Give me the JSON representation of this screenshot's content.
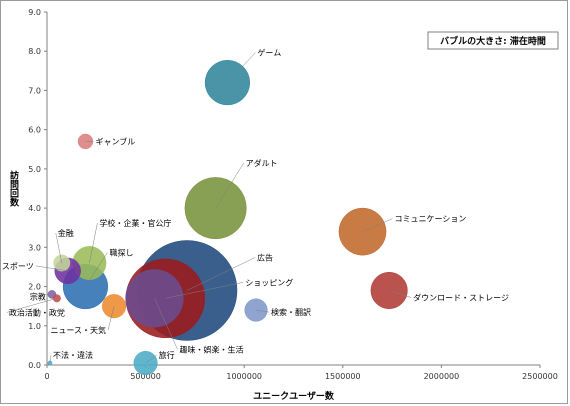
{
  "chart_data": {
    "type": "bubble",
    "note": "バブルの大きさ: 滞在時間",
    "xlabel": "ユニークユーザー数",
    "ylabel": "訪問回数",
    "xlim": [
      0,
      2500000
    ],
    "ylim": [
      0,
      9
    ],
    "x_ticks": [
      "0",
      "500000",
      "1000000",
      "1500000",
      "2000000",
      "2500000"
    ],
    "y_ticks": [
      "0.0",
      "1.0",
      "2.0",
      "3.0",
      "4.0",
      "5.0",
      "6.0",
      "7.0",
      "8.0",
      "9.0"
    ],
    "points": [
      {
        "label": "ゲーム",
        "x": 915000,
        "y": 7.2,
        "size": 9000,
        "color": "#31859c"
      },
      {
        "label": "ギャンブル",
        "x": 195000,
        "y": 5.7,
        "size": 1000,
        "color": "#d9807d"
      },
      {
        "label": "アダルト",
        "x": 855000,
        "y": 4.0,
        "size": 17000,
        "color": "#77933c"
      },
      {
        "label": "コミュニケーション",
        "x": 1600000,
        "y": 3.4,
        "size": 10000,
        "color": "#c0692a"
      },
      {
        "label": "ダウンロード・ストレージ",
        "x": 1735000,
        "y": 1.9,
        "size": 6000,
        "color": "#b03a35"
      },
      {
        "label": "検索・翻訳",
        "x": 1060000,
        "y": 1.4,
        "size": 2300,
        "color": "#7f98c9"
      },
      {
        "label": "広告",
        "x": 710000,
        "y": 1.9,
        "size": 45000,
        "color": "#1f497d"
      },
      {
        "label": "ショッピング",
        "x": 600000,
        "y": 1.7,
        "size": 28000,
        "color": "#9b1b1b"
      },
      {
        "label": "趣味・娯楽・生活",
        "x": 545000,
        "y": 1.7,
        "size": 15000,
        "color": "#6b4c8f"
      },
      {
        "label": "職探し",
        "x": 195000,
        "y": 2.0,
        "size": 9000,
        "color": "#2c6fb3"
      },
      {
        "label": "学校・企業・官公庁",
        "x": 215000,
        "y": 2.6,
        "size": 5000,
        "color": "#9bbb59"
      },
      {
        "label": "ニュース・天気",
        "x": 340000,
        "y": 1.5,
        "size": 2500,
        "color": "#ed8a2d"
      },
      {
        "label": "旅行",
        "x": 500000,
        "y": 0.05,
        "size": 2500,
        "color": "#4bacc6"
      },
      {
        "label": "金融",
        "x": 75000,
        "y": 2.6,
        "size": 1200,
        "color": "#c3d69b"
      },
      {
        "label": "スポーツ",
        "x": 105000,
        "y": 2.4,
        "size": 3000,
        "color": "#7030a0"
      },
      {
        "label": "宗教",
        "x": 25000,
        "y": 1.8,
        "size": 300,
        "color": "#8064a2"
      },
      {
        "label": "政治活動・政党",
        "x": 50000,
        "y": 1.7,
        "size": 250,
        "color": "#c0504d"
      },
      {
        "label": "不法・違法",
        "x": 15000,
        "y": 0.05,
        "size": 80,
        "color": "#4bacc6"
      }
    ]
  }
}
